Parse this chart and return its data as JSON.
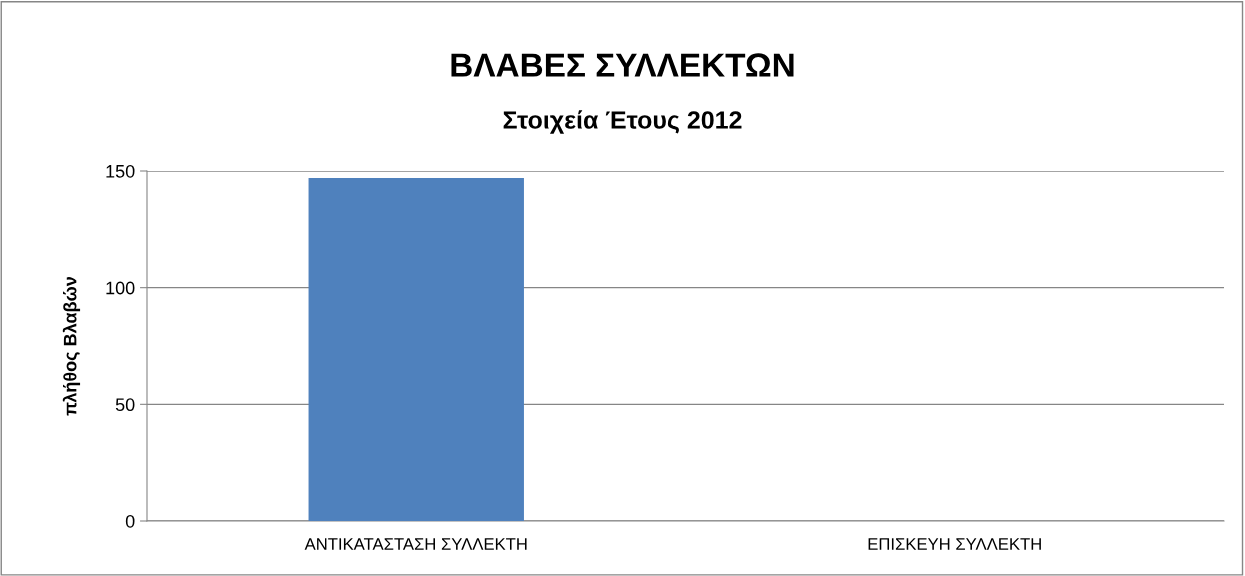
{
  "chart_data": {
    "type": "bar",
    "title": "ΒΛΑΒΕΣ ΣΥΛΛΕΚΤΩΝ",
    "subtitle": "Στοιχεία Έτους 2012",
    "ylabel": "πλήθος Βλαβών",
    "categories": [
      "ΑΝΤΙΚΑΤΑΣΤΑΣΗ ΣΥΛΛΕΚΤΗ",
      "ΕΠΙΣΚΕΥΗ ΣΥΛΛΕΚΤΗ"
    ],
    "values": [
      147,
      0
    ],
    "color": "#4f81bd",
    "ylim": [
      0,
      150
    ],
    "yticks": [
      0,
      50,
      100,
      150
    ],
    "grid": "y"
  }
}
